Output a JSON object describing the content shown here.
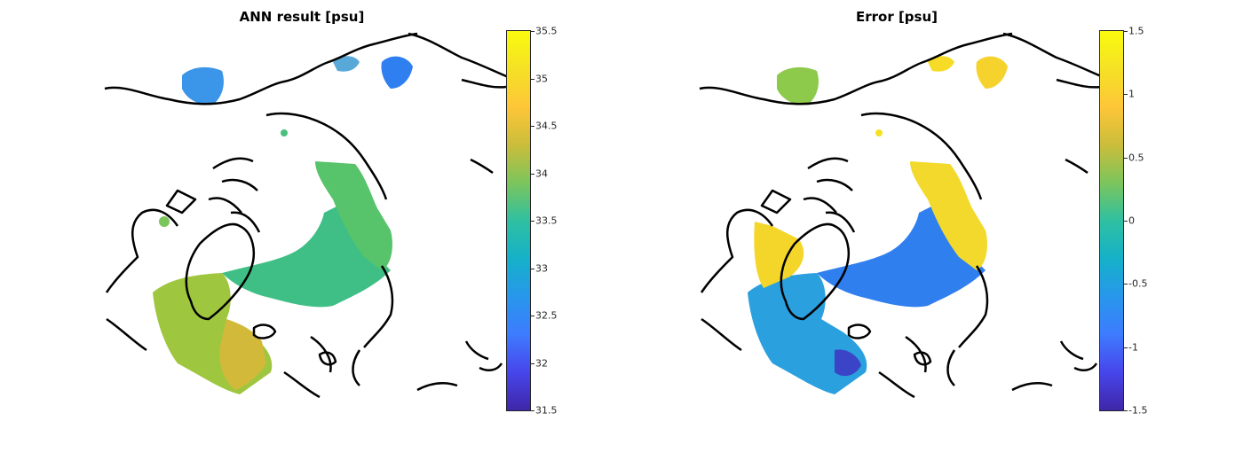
{
  "left_panel": {
    "title": "ANN result [psu]",
    "colorbar": {
      "min": 31.5,
      "max": 35.5,
      "ticks": [
        "31.5",
        "32",
        "32.5",
        "33",
        "33.5",
        "34",
        "34.5",
        "35",
        "35.5"
      ],
      "colormap": "parula"
    }
  },
  "right_panel": {
    "title": "Error [psu]",
    "colorbar": {
      "min": -1.5,
      "max": 1.5,
      "ticks": [
        "-1.5",
        "-1",
        "-0.5",
        "0",
        "0.5",
        "1",
        "1.5"
      ],
      "colormap": "parula"
    }
  },
  "colors": {
    "coastline": "#000000",
    "parula_low": "#3e26a8",
    "parula_mid": "#2fc0a1",
    "parula_high": "#f9fb0e"
  }
}
